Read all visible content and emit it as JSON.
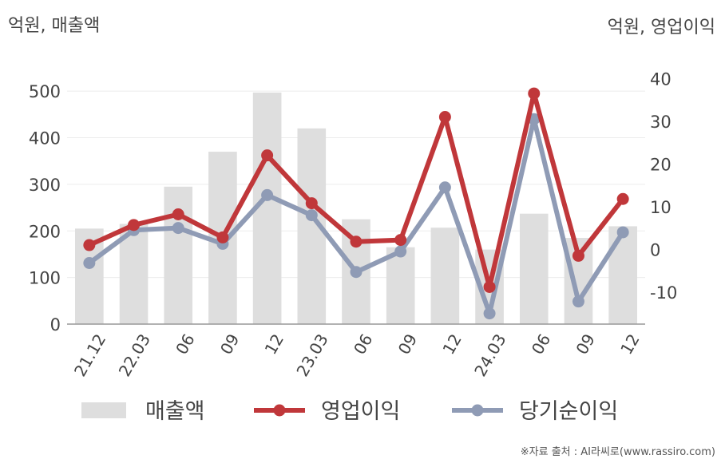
{
  "units": {
    "left": "억원, 매출액",
    "right": "억원, 영업이익"
  },
  "source": "※자료 출처 : AI라씨로(www.rassiro.com)",
  "chart_data": {
    "type": "bar+line",
    "categories": [
      "21.12",
      "22.03",
      "06",
      "09",
      "12",
      "23.03",
      "06",
      "09",
      "12",
      "24.03",
      "06",
      "09",
      "12"
    ],
    "left_axis": {
      "ylim": [
        0,
        550
      ],
      "ticks": [
        "0",
        "100",
        "200",
        "300",
        "400",
        "500"
      ]
    },
    "right_axis": {
      "ylim": [
        -17.5,
        42.5
      ],
      "ticks": [
        "-10",
        "0",
        "10",
        "20",
        "30",
        "40"
      ]
    },
    "series": [
      {
        "name": "매출액",
        "kind": "bar",
        "axis": "left",
        "color": "#dedede",
        "values": [
          205,
          215,
          295,
          370,
          497,
          420,
          225,
          165,
          207,
          160,
          237,
          185,
          210
        ]
      },
      {
        "name": "영업이익",
        "kind": "line",
        "axis": "right",
        "color": "#c0373a",
        "values": [
          1.0,
          5.7,
          8.2,
          2.8,
          22.0,
          10.8,
          1.8,
          2.2,
          31.0,
          -8.8,
          36.5,
          -1.5,
          11.8
        ]
      },
      {
        "name": "당기순이익",
        "kind": "line",
        "axis": "right",
        "color": "#8f9bb5",
        "values": [
          -3.2,
          4.5,
          5.0,
          1.3,
          12.7,
          8.0,
          -5.3,
          -0.5,
          14.5,
          -15.0,
          30.5,
          -12.2,
          4.0
        ]
      }
    ],
    "grid": true,
    "legend": "bottom"
  }
}
